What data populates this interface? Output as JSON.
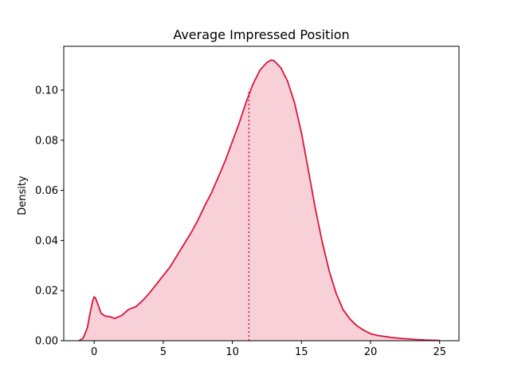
{
  "chart_data": {
    "type": "area",
    "title": "Average Impressed Position",
    "xlabel": "",
    "ylabel": "Density",
    "xlim": [
      -2.2,
      26.4
    ],
    "ylim": [
      0,
      0.1175
    ],
    "xticks": [
      0,
      5,
      10,
      15,
      20,
      25
    ],
    "xtick_labels": [
      "0",
      "5",
      "10",
      "15",
      "20",
      "25"
    ],
    "yticks": [
      0.0,
      0.02,
      0.04,
      0.06,
      0.08,
      0.1
    ],
    "ytick_labels": [
      "0.00",
      "0.02",
      "0.04",
      "0.06",
      "0.08",
      "0.10"
    ],
    "grid": false,
    "colors": {
      "line": "#dc143c",
      "fill": "#f7d0d8"
    },
    "series": [
      {
        "kind": "kde",
        "x": [
          -1.1,
          -0.8,
          -0.5,
          -0.3,
          -0.1,
          0.0,
          0.1,
          0.3,
          0.5,
          0.8,
          1.0,
          1.3,
          1.5,
          2.0,
          2.5,
          3.0,
          3.5,
          4.0,
          4.5,
          5.0,
          5.5,
          6.0,
          6.5,
          7.0,
          7.5,
          8.0,
          8.5,
          9.0,
          9.5,
          10.0,
          10.5,
          11.0,
          11.5,
          12.0,
          12.5,
          12.8,
          13.0,
          13.5,
          14.0,
          14.5,
          15.0,
          15.5,
          16.0,
          16.5,
          17.0,
          17.5,
          18.0,
          18.5,
          19.0,
          19.5,
          20.0,
          20.5,
          21.0,
          21.5,
          22.0,
          23.0,
          24.0,
          25.0
        ],
        "y": [
          0.0,
          0.001,
          0.005,
          0.011,
          0.016,
          0.0175,
          0.017,
          0.014,
          0.011,
          0.0098,
          0.0097,
          0.0093,
          0.0089,
          0.0101,
          0.0125,
          0.0135,
          0.016,
          0.019,
          0.0225,
          0.026,
          0.0295,
          0.034,
          0.0385,
          0.043,
          0.048,
          0.0538,
          0.0592,
          0.0655,
          0.072,
          0.0795,
          0.087,
          0.0952,
          0.1025,
          0.108,
          0.111,
          0.112,
          0.1118,
          0.109,
          0.1035,
          0.095,
          0.083,
          0.068,
          0.053,
          0.0395,
          0.028,
          0.019,
          0.0125,
          0.0087,
          0.006,
          0.0042,
          0.0028,
          0.0021,
          0.0017,
          0.0013,
          0.001,
          0.0006,
          0.0003,
          0.0001
        ]
      }
    ],
    "mean_line": {
      "x": 11.2,
      "y": 0.1005,
      "style": "dotted"
    }
  }
}
